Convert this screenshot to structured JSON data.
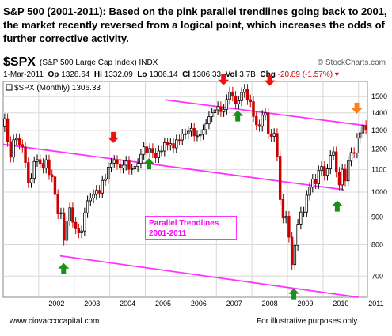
{
  "header": {
    "headline": "S&P 500 (2001-2011):  Based on the pink parallel trendlines going back to 2001, the market recently  reversed from a logical point, which increases the odds of further corrective activity."
  },
  "ticker": {
    "symbol": "$SPX",
    "name": "(S&P 500 Large Cap Index)",
    "exchange": "INDX",
    "provider": "© StockCharts.com"
  },
  "quote": {
    "date": "1-Mar-2011",
    "open_label": "Op",
    "open": "1328.64",
    "high_label": "Hi",
    "high": "1332.09",
    "low_label": "Lo",
    "low": "1306.14",
    "close_label": "Cl",
    "close": "1306.33",
    "volume_label": "Vol",
    "volume": "3.7B",
    "change_label": "Chg",
    "change": "-20.89 (-1.57%)",
    "legend": "$SPX (Monthly) 1306.33"
  },
  "annotation": {
    "line1": "Parallel Trendlines",
    "line2": "2001-2011"
  },
  "footer": {
    "left": "www.ciovaccocapital.com",
    "right": "For illustrative purposes only."
  },
  "colors": {
    "trendline": "#ff33ff",
    "down_candle": "#cc0000",
    "up_candle": "#000000",
    "green_arrow": "#1a8f1a",
    "red_arrow": "#ee1111",
    "orange_arrow": "#ff7f1a",
    "grid": "#d8d8d8"
  },
  "chart_data": {
    "type": "candlestick",
    "scale": "log",
    "ylim": [
      640,
      1600
    ],
    "y_ticks": [
      700,
      800,
      900,
      1000,
      1100,
      1200,
      1300,
      1400,
      1500
    ],
    "x_ticks": [
      "2002",
      "2003",
      "2004",
      "2005",
      "2006",
      "2007",
      "2008",
      "2009",
      "2010",
      "2011"
    ],
    "x_start": 2001.0,
    "x_end": 2011.25,
    "closes": [
      1366,
      1240,
      1160,
      1249,
      1256,
      1224,
      1211,
      1134,
      1041,
      1060,
      1139,
      1148,
      1130,
      1107,
      1147,
      1077,
      1067,
      990,
      912,
      916,
      815,
      885,
      936,
      880,
      856,
      841,
      848,
      916,
      964,
      975,
      990,
      1008,
      996,
      1051,
      1058,
      1112,
      1131,
      1145,
      1126,
      1107,
      1121,
      1141,
      1102,
      1104,
      1115,
      1130,
      1174,
      1212,
      1181,
      1204,
      1181,
      1157,
      1191,
      1191,
      1234,
      1220,
      1229,
      1207,
      1249,
      1248,
      1280,
      1281,
      1295,
      1311,
      1270,
      1270,
      1277,
      1304,
      1336,
      1378,
      1401,
      1418,
      1438,
      1407,
      1421,
      1482,
      1530,
      1503,
      1455,
      1474,
      1527,
      1549,
      1481,
      1468,
      1379,
      1331,
      1322,
      1386,
      1400,
      1280,
      1267,
      1283,
      1165,
      969,
      896,
      903,
      826,
      735,
      798,
      873,
      919,
      919,
      987,
      1021,
      1057,
      1036,
      1096,
      1115,
      1074,
      1104,
      1169,
      1187,
      1089,
      1031,
      1102,
      1049,
      1141,
      1183,
      1181,
      1258,
      1286,
      1327,
      1306
    ],
    "trendlines": [
      {
        "points": [
          [
            2001.0,
            1225
          ],
          [
            2010.6,
            1010
          ]
        ]
      },
      {
        "points": [
          [
            2002.6,
            763
          ],
          [
            2011.0,
            640
          ]
        ]
      },
      {
        "points": [
          [
            2005.55,
            1480
          ],
          [
            2011.25,
            1325
          ]
        ]
      }
    ],
    "arrows": [
      {
        "color": "red",
        "direction": "down",
        "x": 2004.1,
        "y": 1232
      },
      {
        "color": "red",
        "direction": "down",
        "x": 2007.2,
        "y": 1575
      },
      {
        "color": "red",
        "direction": "down",
        "x": 2008.5,
        "y": 1570
      },
      {
        "color": "orange",
        "direction": "down",
        "x": 2010.95,
        "y": 1395
      },
      {
        "color": "green",
        "direction": "up",
        "x": 2002.7,
        "y": 740
      },
      {
        "color": "green",
        "direction": "up",
        "x": 2005.1,
        "y": 1155
      },
      {
        "color": "green",
        "direction": "up",
        "x": 2007.6,
        "y": 1415
      },
      {
        "color": "green",
        "direction": "up",
        "x": 2009.18,
        "y": 665
      },
      {
        "color": "green",
        "direction": "up",
        "x": 2010.4,
        "y": 965
      }
    ]
  }
}
